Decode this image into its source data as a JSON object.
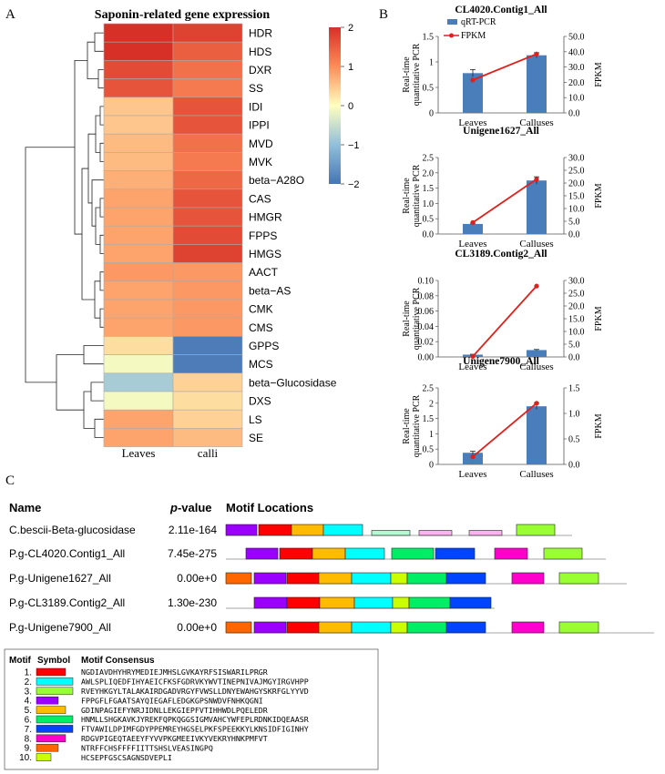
{
  "panel_a": {
    "label": "A",
    "title": "Saponin-related gene expression",
    "columns": [
      "Leaves",
      "calli"
    ],
    "colorbar": {
      "ticks": [
        "2",
        "1",
        "0",
        "−1",
        "−2"
      ],
      "vmin": -2,
      "vmax": 2
    },
    "genes": [
      {
        "name": "HDR",
        "leaves": 2.4,
        "calli": 1.8
      },
      {
        "name": "HDS",
        "leaves": 2.0,
        "calli": 1.5
      },
      {
        "name": "DXR",
        "leaves": 1.7,
        "calli": 1.3
      },
      {
        "name": "SS",
        "leaves": 1.6,
        "calli": 1.2
      },
      {
        "name": "IDI",
        "leaves": 0.5,
        "calli": 1.6
      },
      {
        "name": "IPPI",
        "leaves": 0.5,
        "calli": 1.6
      },
      {
        "name": "MVD",
        "leaves": 0.6,
        "calli": 1.3
      },
      {
        "name": "MVK",
        "leaves": 0.6,
        "calli": 1.2
      },
      {
        "name": "beta−A28O",
        "leaves": 0.7,
        "calli": 1.4
      },
      {
        "name": "CAS",
        "leaves": 0.8,
        "calli": 1.6
      },
      {
        "name": "HMGR",
        "leaves": 0.8,
        "calli": 1.6
      },
      {
        "name": "FPPS",
        "leaves": 0.8,
        "calli": 1.7
      },
      {
        "name": "HMGS",
        "leaves": 0.8,
        "calli": 1.8
      },
      {
        "name": "AACT",
        "leaves": 0.9,
        "calli": 0.9
      },
      {
        "name": "beta−AS",
        "leaves": 0.8,
        "calli": 0.9
      },
      {
        "name": "CMK",
        "leaves": 0.8,
        "calli": 0.9
      },
      {
        "name": "CMS",
        "leaves": 0.8,
        "calli": 0.9
      },
      {
        "name": "GPPS",
        "leaves": 0.3,
        "calli": -1.9
      },
      {
        "name": "MCS",
        "leaves": -0.1,
        "calli": -1.9
      },
      {
        "name": "beta−Glucosidase",
        "leaves": -0.8,
        "calli": 0.4
      },
      {
        "name": "DXS",
        "leaves": -0.1,
        "calli": 0.3
      },
      {
        "name": "LS",
        "leaves": 0.8,
        "calli": 0.4
      },
      {
        "name": "SE",
        "leaves": 0.8,
        "calli": 0.6
      }
    ]
  },
  "panel_b": {
    "label": "B",
    "y_left_label": [
      "Real-time",
      "quantitative PCR"
    ],
    "y_right_label": "FPKM",
    "categories": [
      "Leaves",
      "Calluses"
    ],
    "legend": [
      "qRT-PCR",
      "FPKM"
    ],
    "colors": {
      "bar": "#4a7ebb",
      "line": "#e0201c"
    },
    "charts": [
      {
        "title": "CL4020.Contig1_All",
        "qpcr": [
          0.78,
          1.13
        ],
        "qpcr_err": [
          0.07,
          0.05
        ],
        "fpkm": [
          21.5,
          38.5
        ],
        "fpkm_err": [
          1.0,
          1.5
        ],
        "left_ticks": [
          "0",
          "0.5",
          "1",
          "1.5"
        ],
        "left_max": 1.5,
        "right_ticks": [
          "0.0",
          "10.0",
          "20.0",
          "30.0",
          "40.0",
          "50.0"
        ],
        "right_max": 50
      },
      {
        "title": "Unigene1627_All",
        "qpcr": [
          0.33,
          1.75
        ],
        "qpcr_err": [
          0.02,
          0.12
        ],
        "fpkm": [
          4.5,
          21.5
        ],
        "fpkm_err": [
          0.5,
          1.0
        ],
        "left_ticks": [
          "0.0",
          "0.5",
          "1.0",
          "1.5",
          "2.0",
          "2.5"
        ],
        "left_max": 2.5,
        "right_ticks": [
          "0.0",
          "5.0",
          "10.0",
          "15.0",
          "20.0",
          "25.0",
          "30.0"
        ],
        "right_max": 30
      },
      {
        "title": "CL3189.Contig2_All",
        "qpcr": [
          0.003,
          0.009
        ],
        "qpcr_err": [
          0.0005,
          0.0008
        ],
        "fpkm": [
          0.2,
          27.8
        ],
        "fpkm_err": [
          0.1,
          0.2
        ],
        "left_ticks": [
          "0.00",
          "0.02",
          "0.04",
          "0.06",
          "0.08",
          "0.10"
        ],
        "left_max": 0.1,
        "right_ticks": [
          "0.0",
          "5.0",
          "10.0",
          "15.0",
          "20.0",
          "25.0",
          "30.0"
        ],
        "right_max": 30
      },
      {
        "title": "Unigene7900_All",
        "qpcr": [
          0.38,
          1.9
        ],
        "qpcr_err": [
          0.05,
          0.1
        ],
        "fpkm": [
          0.15,
          1.2
        ],
        "fpkm_err": [
          0.02,
          0.04
        ],
        "left_ticks": [
          "0",
          "0.5",
          "1",
          "1.5",
          "2",
          "2.5"
        ],
        "left_max": 2.5,
        "right_ticks": [
          "0.0",
          "0.5",
          "1.0",
          "1.5"
        ],
        "right_max": 1.5
      }
    ]
  },
  "panel_c": {
    "label": "C",
    "headers": {
      "name": "Name",
      "pvalue": "p",
      "pvalue_suffix": "-value",
      "locations": "Motif Locations"
    },
    "rows": [
      {
        "name": "C.bescii-Beta-glucosidase",
        "pvalue": "2.11e-164",
        "seq_end": 628,
        "motifs": [
          {
            "m": 4,
            "x": 248,
            "w": 34
          },
          {
            "m": 1,
            "x": 284,
            "w": 36
          },
          {
            "m": 5,
            "x": 320,
            "w": 35
          },
          {
            "m": 2,
            "x": 355,
            "w": 43
          },
          {
            "m": 6,
            "x": 408,
            "w": 42,
            "faint": true
          },
          {
            "m": 8,
            "x": 460,
            "w": 36,
            "faint": true
          },
          {
            "m": 8,
            "x": 515,
            "w": 36,
            "faint": true
          },
          {
            "m": 3,
            "x": 567,
            "w": 42
          }
        ]
      },
      {
        "name": "P.g-CL4020.Contig1_All",
        "pvalue": "7.45e-275",
        "seq_end": 665,
        "motifs": [
          {
            "m": 4,
            "x": 270,
            "w": 35
          },
          {
            "m": 1,
            "x": 307,
            "w": 36
          },
          {
            "m": 5,
            "x": 343,
            "w": 36
          },
          {
            "m": 2,
            "x": 379,
            "w": 43
          },
          {
            "m": 6,
            "x": 430,
            "w": 46
          },
          {
            "m": 7,
            "x": 478,
            "w": 43
          },
          {
            "m": 8,
            "x": 543,
            "w": 36
          },
          {
            "m": 3,
            "x": 597,
            "w": 42
          }
        ]
      },
      {
        "name": "P.g-Unigene1627_All",
        "pvalue": "0.00e+0",
        "seq_end": 688,
        "motifs": [
          {
            "m": 9,
            "x": 248,
            "w": 28
          },
          {
            "m": 4,
            "x": 279,
            "w": 35
          },
          {
            "m": 1,
            "x": 315,
            "w": 36
          },
          {
            "m": 5,
            "x": 350,
            "w": 36
          },
          {
            "m": 2,
            "x": 386,
            "w": 43
          },
          {
            "m": 10,
            "x": 429,
            "w": 18
          },
          {
            "m": 6,
            "x": 447,
            "w": 43
          },
          {
            "m": 7,
            "x": 490,
            "w": 43
          },
          {
            "m": 8,
            "x": 562,
            "w": 35
          },
          {
            "m": 3,
            "x": 614,
            "w": 43
          }
        ]
      },
      {
        "name": "P.g-CL3189.Contig2_All",
        "pvalue": "1.30e-230",
        "seq_end": 543,
        "motifs": [
          {
            "m": 4,
            "x": 279,
            "w": 36
          },
          {
            "m": 1,
            "x": 315,
            "w": 36
          },
          {
            "m": 5,
            "x": 351,
            "w": 38
          },
          {
            "m": 2,
            "x": 389,
            "w": 42
          },
          {
            "m": 10,
            "x": 431,
            "w": 18
          },
          {
            "m": 6,
            "x": 449,
            "w": 45
          },
          {
            "m": 7,
            "x": 494,
            "w": 45
          }
        ]
      },
      {
        "name": "P.g-Unigene7900_All",
        "pvalue": "0.00e+0",
        "seq_end": 718,
        "motifs": [
          {
            "m": 9,
            "x": 248,
            "w": 28
          },
          {
            "m": 4,
            "x": 279,
            "w": 35
          },
          {
            "m": 1,
            "x": 315,
            "w": 36
          },
          {
            "m": 5,
            "x": 350,
            "w": 36
          },
          {
            "m": 2,
            "x": 386,
            "w": 43
          },
          {
            "m": 10,
            "x": 429,
            "w": 18
          },
          {
            "m": 6,
            "x": 447,
            "w": 43
          },
          {
            "m": 7,
            "x": 490,
            "w": 43
          },
          {
            "m": 8,
            "x": 562,
            "w": 35
          },
          {
            "m": 3,
            "x": 614,
            "w": 43
          }
        ]
      }
    ],
    "table_headers": {
      "motif": "Motif",
      "symbol": "Symbol",
      "consensus": "Motif Consensus"
    },
    "motif_colors": {
      "1": "#ff0000",
      "2": "#00ffff",
      "3": "#99ff33",
      "4": "#9900ff",
      "5": "#ffbb00",
      "6": "#00ee66",
      "7": "#0044ff",
      "8": "#ff00cc",
      "9": "#ff6600",
      "10": "#ccff00"
    },
    "motifs": [
      {
        "num": "1.",
        "consensus": "NGDIAVDHYHRYMEDIEJMHSLGVKAYRFSISWARILPRGR"
      },
      {
        "num": "2.",
        "consensus": "AWLSPLIQEDFIHYAEICFKSFGDRVKYWVTINEPNIVAJMGYIRGVHPP"
      },
      {
        "num": "3.",
        "consensus": "RVEYHKGYLTALAKAIRDGADVRGYFVWSLLDNYEWAHGYSKRFGLYYVD"
      },
      {
        "num": "4.",
        "consensus": "FPPGFLFGAATSAYQIEGAFLEDGKGPSNWDVFNHKQGNI"
      },
      {
        "num": "5.",
        "consensus": "GDINPAGIEFYNRJIDNLLEKGIEPFVTIHHWDLPQELEDR"
      },
      {
        "num": "6.",
        "consensus": "HNMLLSHGKAVKJYREKFQPKQGGSIGMVAHCYWFEPLRDNKIDQEAASR"
      },
      {
        "num": "7.",
        "consensus": "FTVAWILDPIMFGDYPPEMREYHGSELPKFSPEEKKYLKNSIDFIGINHY"
      },
      {
        "num": "8.",
        "consensus": "RDGVPIGEQTAEEYFYVVPKGMEEIVKYVEKRYHNKPMFVT"
      },
      {
        "num": "9.",
        "consensus": "NTRFFCHSFFFFIITTSHSLVEASINGPQ"
      },
      {
        "num": "10.",
        "consensus": "HCSEPFGSCSAGNSDVEPLI"
      }
    ]
  }
}
